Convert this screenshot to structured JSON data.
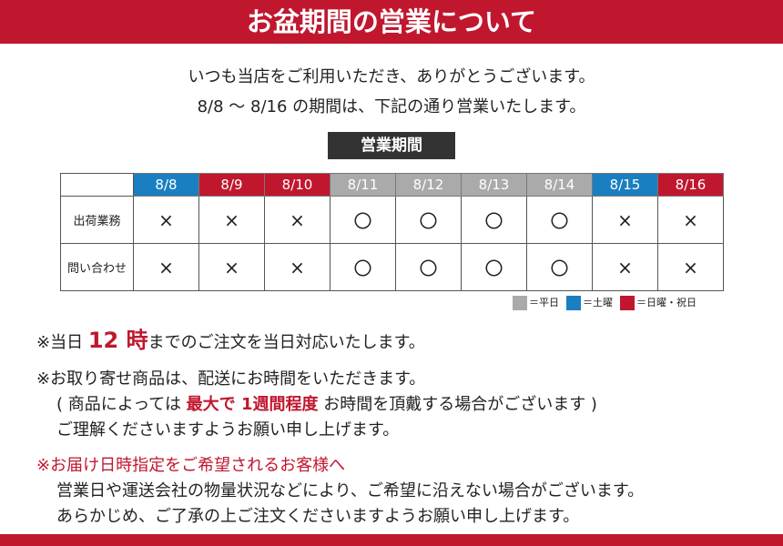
{
  "title": "お盆期間の営業について",
  "intro": [
    "いつも当店をご利用いただき、ありがとうございます。",
    "8/8 ～ 8/16 の期間は、下記の通り営業いたします。"
  ],
  "section_label": "営業期間",
  "colors": {
    "weekday": "#aaaaaa",
    "saturday": "#1a7fc1",
    "holiday": "#c0172f"
  },
  "dates": [
    {
      "label": "8/8",
      "type": "saturday"
    },
    {
      "label": "8/9",
      "type": "holiday"
    },
    {
      "label": "8/10",
      "type": "holiday"
    },
    {
      "label": "8/11",
      "type": "weekday"
    },
    {
      "label": "8/12",
      "type": "weekday"
    },
    {
      "label": "8/13",
      "type": "weekday"
    },
    {
      "label": "8/14",
      "type": "weekday"
    },
    {
      "label": "8/15",
      "type": "saturday"
    },
    {
      "label": "8/16",
      "type": "holiday"
    }
  ],
  "rows": [
    {
      "label": "出荷業務",
      "values": [
        "×",
        "×",
        "×",
        "〇",
        "〇",
        "〇",
        "〇",
        "×",
        "×"
      ]
    },
    {
      "label": "問い合わせ",
      "values": [
        "×",
        "×",
        "×",
        "〇",
        "〇",
        "〇",
        "〇",
        "×",
        "×"
      ]
    }
  ],
  "legend": [
    {
      "type": "weekday",
      "label": "＝平日"
    },
    {
      "type": "saturday",
      "label": "＝土曜"
    },
    {
      "type": "holiday",
      "label": "＝日曜・祝日"
    }
  ],
  "notes": {
    "n1": {
      "pre": "※当日 ",
      "em": "12 時",
      "post": "までのご注文を当日対応いたします。"
    },
    "n2a": "※お取り寄せ商品は、配送にお時間をいただきます。",
    "n2b": {
      "pre": "( 商品によっては ",
      "em": "最大で 1週間程度",
      "post": " お時間を頂戴する場合がございます )"
    },
    "n2c": "ご理解くださいますようお願い申し上げます。",
    "n3a": "※お届け日時指定をご希望されるお客様へ",
    "n3b": "営業日や運送会社の物量状況などにより、ご希望に沿えない場合がございます。",
    "n3c": "あらかじめ、ご了承の上ご注文くださいますようお願い申し上げます。"
  }
}
